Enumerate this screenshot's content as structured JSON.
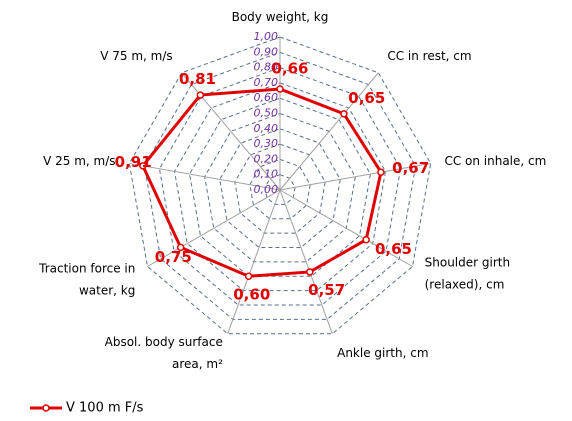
{
  "chart_data": {
    "type": "radar",
    "categories": [
      "Body weight,  kg",
      "CC in rest, cm",
      "CC on inhale, cm",
      "Shoulder girth\n(relaxed), cm",
      "Ankle girth, cm",
      "Absol. body surface\narea, m²",
      "Traction force in\nwater, kg",
      "V 25 m, m/s",
      "V 75 m,  m/s"
    ],
    "series": [
      {
        "name": "V 100 m F/s",
        "color": "#e00000",
        "values": [
          0.66,
          0.65,
          0.67,
          0.65,
          0.57,
          0.6,
          0.75,
          0.91,
          0.81
        ],
        "value_labels": [
          "0,66",
          "0,65",
          "0,67",
          "0,65",
          "0,57",
          "0,60",
          "0,75",
          "0,91",
          "0,81"
        ]
      }
    ],
    "ylim": [
      0,
      1
    ],
    "yticks": [
      {
        "value": 0,
        "label": "0,00"
      },
      {
        "value": 0.1,
        "label": "0,10"
      },
      {
        "value": 0.2,
        "label": "0,20"
      },
      {
        "value": 0.3,
        "label": "0,30"
      },
      {
        "value": 0.4,
        "label": "0,40"
      },
      {
        "value": 0.5,
        "label": "0,50"
      },
      {
        "value": 0.6,
        "label": "0,60"
      },
      {
        "value": 0.7,
        "label": "0,70"
      },
      {
        "value": 0.8,
        "label": "0,80"
      },
      {
        "value": 0.9,
        "label": "0,90"
      },
      {
        "value": 1,
        "label": "1,00"
      }
    ],
    "grid": true,
    "legend": "bottom-left"
  }
}
